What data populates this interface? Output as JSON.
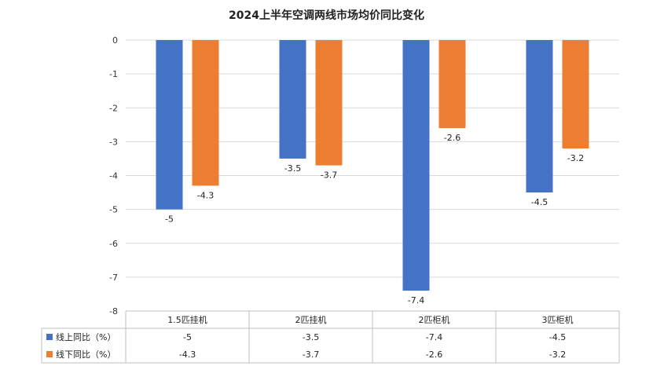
{
  "chart_data": {
    "type": "bar",
    "title": "2024上半年空调两线市场均价同比变化",
    "categories": [
      "1.5匹挂机",
      "2匹挂机",
      "2匹柜机",
      "3匹柜机"
    ],
    "series": [
      {
        "name": "线上同比（%）",
        "color": "#4472C4",
        "values": [
          -5,
          -3.5,
          -7.4,
          -4.5
        ],
        "labels": [
          "-5",
          "-3.5",
          "-7.4",
          "-4.5"
        ]
      },
      {
        "name": "线下同比（%）",
        "color": "#ED7D31",
        "values": [
          -4.3,
          -3.7,
          -2.6,
          -3.2
        ],
        "labels": [
          "-4.3",
          "-3.7",
          "-2.6",
          "-3.2"
        ]
      }
    ],
    "ylim": [
      -8,
      0
    ],
    "yticks": [
      0,
      -1,
      -2,
      -3,
      -4,
      -5,
      -6,
      -7,
      -8
    ],
    "grid": true,
    "legend": "data-table",
    "xlabel": "",
    "ylabel": ""
  }
}
